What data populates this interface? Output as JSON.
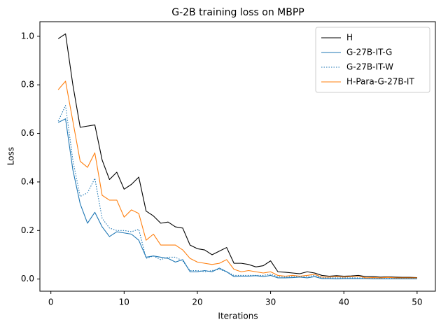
{
  "chart_data": {
    "type": "line",
    "title": "G-2B training loss on MBPP",
    "xlabel": "Iterations",
    "ylabel": "Loss",
    "xlim": [
      -1.5,
      52.5
    ],
    "ylim": [
      -0.05,
      1.06
    ],
    "xticks": [
      0,
      10,
      20,
      30,
      40,
      50
    ],
    "yticks": [
      0.0,
      0.2,
      0.4,
      0.6,
      0.8,
      1.0
    ],
    "xtick_labels": [
      "0",
      "10",
      "20",
      "30",
      "40",
      "50"
    ],
    "ytick_labels": [
      "0.0",
      "0.2",
      "0.4",
      "0.6",
      "0.8",
      "1.0"
    ],
    "grid": false,
    "legend_position": "top-right",
    "x": [
      1,
      2,
      3,
      4,
      5,
      6,
      7,
      8,
      9,
      10,
      11,
      12,
      13,
      14,
      15,
      16,
      17,
      18,
      19,
      20,
      21,
      22,
      23,
      24,
      25,
      26,
      27,
      28,
      29,
      30,
      31,
      32,
      33,
      34,
      35,
      36,
      37,
      38,
      39,
      40,
      41,
      42,
      43,
      44,
      45,
      46,
      47,
      48,
      49,
      50
    ],
    "series": [
      {
        "name": "H",
        "color": "#000000",
        "style": "solid",
        "values": [
          0.99,
          1.01,
          0.8,
          0.625,
          0.63,
          0.635,
          0.49,
          0.41,
          0.44,
          0.37,
          0.39,
          0.42,
          0.28,
          0.26,
          0.23,
          0.235,
          0.215,
          0.21,
          0.14,
          0.125,
          0.12,
          0.1,
          0.115,
          0.13,
          0.065,
          0.065,
          0.06,
          0.05,
          0.055,
          0.075,
          0.03,
          0.028,
          0.025,
          0.022,
          0.03,
          0.025,
          0.015,
          0.012,
          0.014,
          0.012,
          0.013,
          0.015,
          0.01,
          0.01,
          0.008,
          0.009,
          0.008,
          0.007,
          0.007,
          0.006
        ]
      },
      {
        "name": "G-27B-IT-G",
        "color": "#1f77b4",
        "style": "solid",
        "values": [
          0.645,
          0.66,
          0.45,
          0.31,
          0.23,
          0.275,
          0.215,
          0.175,
          0.195,
          0.19,
          0.185,
          0.16,
          0.09,
          0.095,
          0.09,
          0.085,
          0.07,
          0.08,
          0.03,
          0.03,
          0.035,
          0.03,
          0.045,
          0.03,
          0.01,
          0.012,
          0.012,
          0.014,
          0.01,
          0.015,
          0.005,
          0.005,
          0.006,
          0.008,
          0.005,
          0.01,
          0.002,
          0.002,
          0.001,
          0.002,
          0.002,
          0.002,
          0.002,
          0.001,
          0.001,
          0.001,
          0.001,
          0.001,
          0.001,
          0.001
        ]
      },
      {
        "name": "G-27B-IT-W",
        "color": "#1f77b4",
        "style": "dotted",
        "values": [
          0.65,
          0.715,
          0.49,
          0.34,
          0.355,
          0.415,
          0.25,
          0.21,
          0.2,
          0.2,
          0.195,
          0.205,
          0.085,
          0.095,
          0.08,
          0.09,
          0.09,
          0.075,
          0.035,
          0.035,
          0.03,
          0.035,
          0.04,
          0.03,
          0.015,
          0.015,
          0.015,
          0.015,
          0.015,
          0.02,
          0.01,
          0.008,
          0.01,
          0.01,
          0.01,
          0.015,
          0.005,
          0.005,
          0.005,
          0.005,
          0.005,
          0.005,
          0.003,
          0.003,
          0.003,
          0.003,
          0.003,
          0.003,
          0.003,
          0.003
        ]
      },
      {
        "name": "H-Para-G-27B-IT",
        "color": "#ff7f0e",
        "style": "solid",
        "values": [
          0.78,
          0.815,
          0.65,
          0.485,
          0.46,
          0.52,
          0.345,
          0.325,
          0.325,
          0.255,
          0.285,
          0.27,
          0.16,
          0.185,
          0.14,
          0.14,
          0.14,
          0.12,
          0.085,
          0.07,
          0.065,
          0.06,
          0.065,
          0.08,
          0.04,
          0.03,
          0.035,
          0.03,
          0.025,
          0.03,
          0.015,
          0.012,
          0.015,
          0.012,
          0.015,
          0.02,
          0.008,
          0.008,
          0.01,
          0.008,
          0.01,
          0.012,
          0.005,
          0.006,
          0.005,
          0.007,
          0.005,
          0.005,
          0.005,
          0.005
        ]
      }
    ]
  }
}
